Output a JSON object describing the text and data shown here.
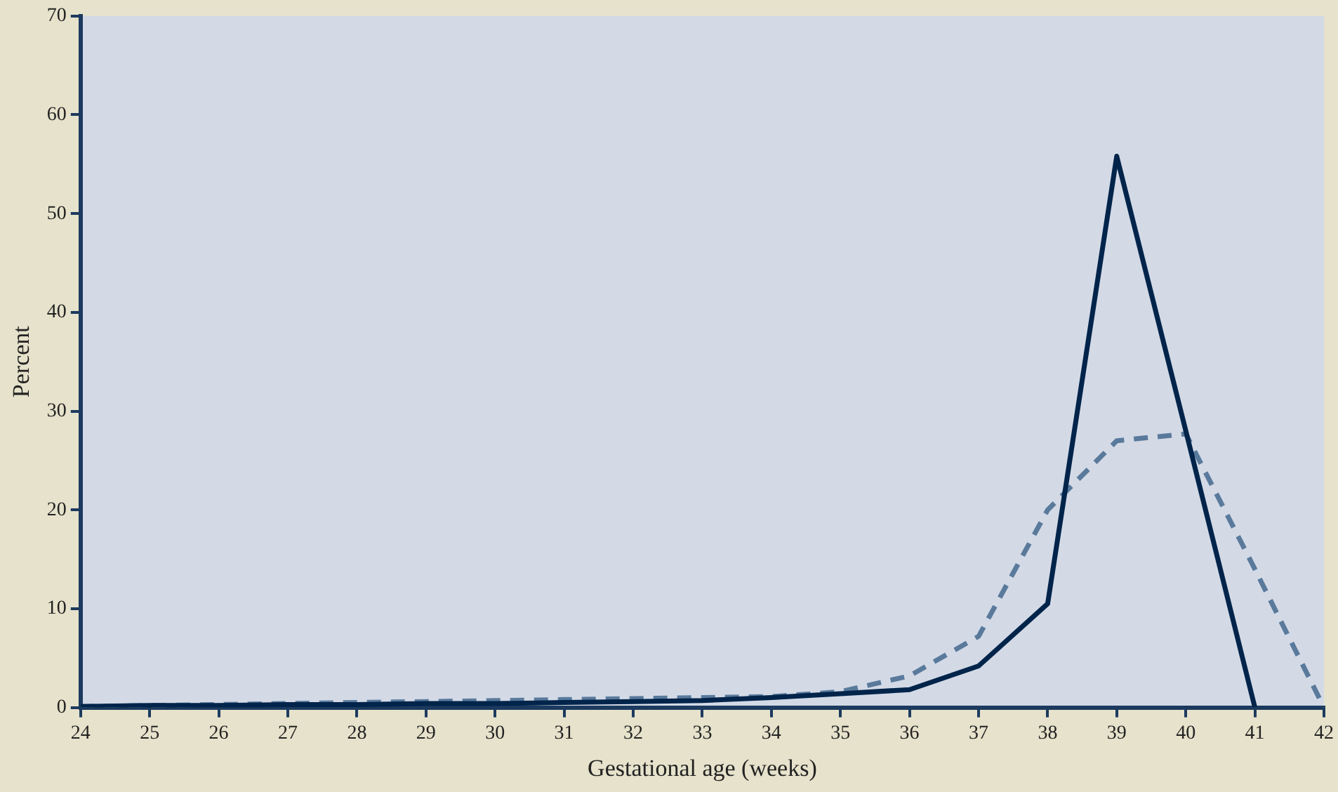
{
  "chart_data": {
    "type": "line",
    "xlabel": "Gestational age (weeks)",
    "ylabel": "Percent",
    "x": [
      24,
      25,
      26,
      27,
      28,
      29,
      30,
      31,
      32,
      33,
      34,
      35,
      36,
      37,
      38,
      39,
      40,
      41,
      42
    ],
    "series": [
      {
        "color": "#00244a",
        "line_style": "solid",
        "values": [
          0.1,
          0.2,
          0.2,
          0.3,
          0.3,
          0.4,
          0.4,
          0.5,
          0.6,
          0.7,
          1.0,
          1.4,
          1.8,
          4.2,
          10.5,
          55.8,
          28,
          0,
          null
        ]
      },
      {
        "color": "#5a7a9c",
        "line_style": "dashed",
        "values": [
          0.1,
          0.2,
          0.3,
          0.4,
          0.5,
          0.6,
          0.7,
          0.8,
          0.9,
          1.0,
          1.1,
          1.6,
          3.2,
          7.2,
          20,
          27,
          27.7,
          14,
          0
        ]
      }
    ],
    "xlim": [
      24,
      42
    ],
    "xticks": [
      24,
      25,
      26,
      27,
      28,
      29,
      30,
      31,
      32,
      33,
      34,
      35,
      36,
      37,
      38,
      39,
      40,
      41,
      42
    ],
    "ylim": [
      0,
      70
    ],
    "yticks": [
      0,
      10,
      20,
      30,
      40,
      50,
      60,
      70
    ],
    "grid": false,
    "legend": false,
    "marker": "none"
  }
}
